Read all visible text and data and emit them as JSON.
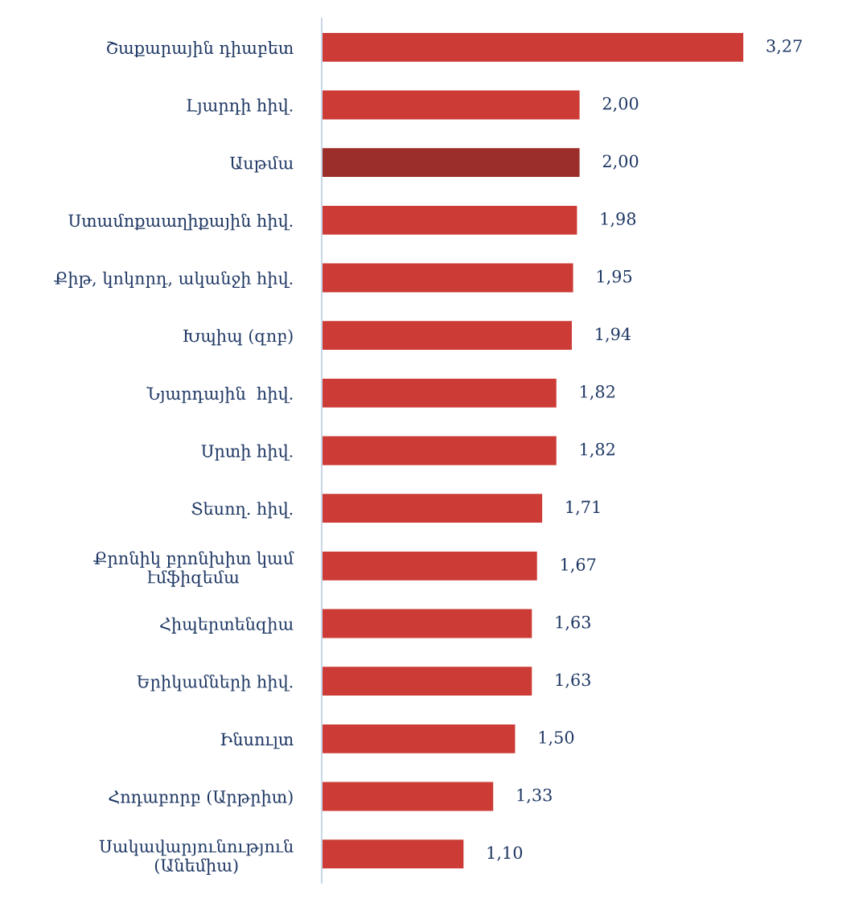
{
  "chart_data": {
    "type": "bar",
    "orientation": "horizontal",
    "categories": [
      "Շաքարային դիաբետ",
      "Լյարդի հիվ.",
      "Ասթմա",
      "Ստամոքաաղիքային հիվ.",
      "Քիթ, կոկորդ, ականջի հիվ.",
      "Խպիպ (զոբ)",
      "Նյարդային  հիվ.",
      "Սրտի հիվ.",
      "Տեսող. հիվ.",
      "Քրոնիկ բրոնխիտ կամ էմֆիզեմա",
      "Հիպերտենզիա",
      "Երիկամների հիվ.",
      "Ինսուլտ",
      "Հոդաբորբ (Արթրիտ)",
      "Սակավարյունություն (Անեմիա)"
    ],
    "values": [
      3.27,
      2.0,
      2.0,
      1.98,
      1.95,
      1.94,
      1.82,
      1.82,
      1.71,
      1.67,
      1.63,
      1.63,
      1.5,
      1.33,
      1.1
    ],
    "value_labels": [
      "3,27",
      "2,00",
      "2,00",
      "1,98",
      "1,95",
      "1,94",
      "1,82",
      "1,82",
      "1,71",
      "1,67",
      "1,63",
      "1,63",
      "1,50",
      "1,33",
      "1,10"
    ],
    "colors": [
      "#cc3b36",
      "#cc3b36",
      "#9b2d2a",
      "#cc3b36",
      "#cc3b36",
      "#cc3b36",
      "#cc3b36",
      "#cc3b36",
      "#cc3b36",
      "#cc3b36",
      "#cc3b36",
      "#cc3b36",
      "#cc3b36",
      "#cc3b36",
      "#cc3b36"
    ],
    "grid": false,
    "legend": false
  }
}
